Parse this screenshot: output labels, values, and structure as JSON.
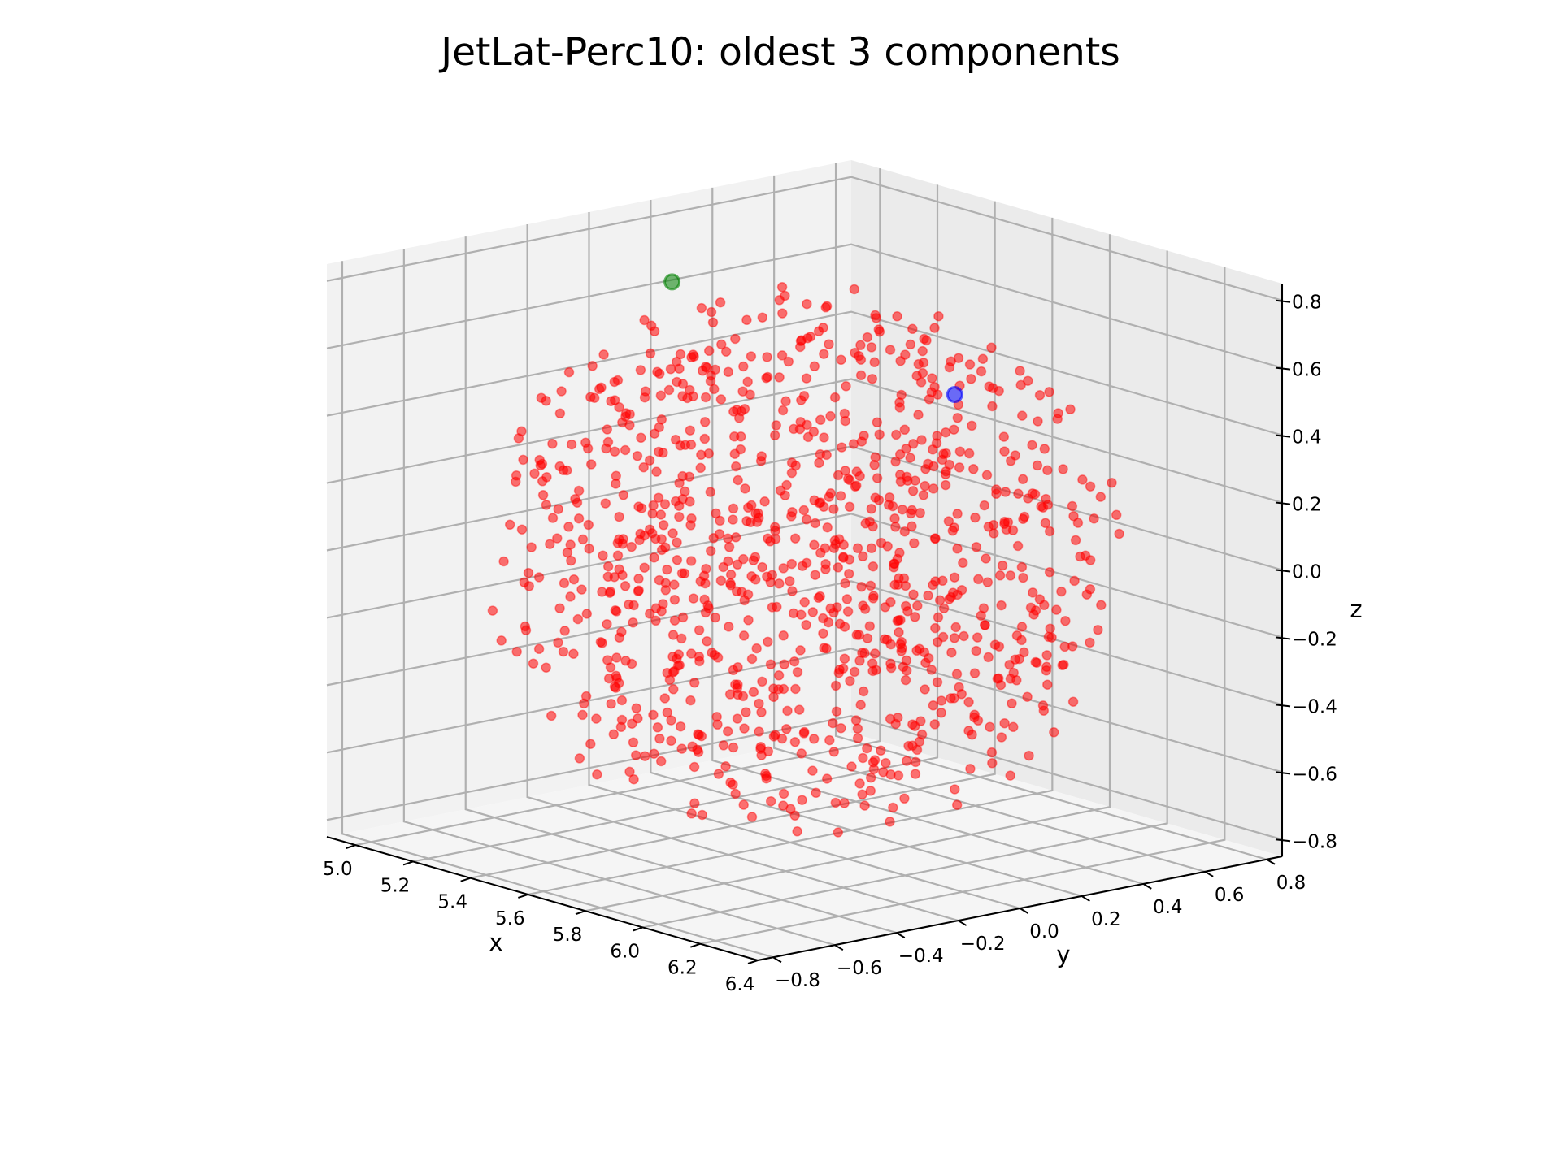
{
  "chart_data": {
    "type": "scatter",
    "title": "JetLat-Perc10: oldest 3 components",
    "xlabel": "x",
    "ylabel": "y",
    "zlabel": "z",
    "projection": "3d",
    "xlim": [
      4.9,
      6.4
    ],
    "ylim": [
      -0.85,
      0.85
    ],
    "zlim": [
      -0.85,
      0.85
    ],
    "x_ticks": [
      "5.0",
      "5.2",
      "5.4",
      "5.6",
      "5.8",
      "6.0",
      "6.2",
      "6.4"
    ],
    "y_ticks": [
      "−0.8",
      "−0.6",
      "−0.4",
      "−0.2",
      "0.0",
      "0.2",
      "0.4",
      "0.6",
      "0.8"
    ],
    "z_ticks": [
      "−0.8",
      "−0.6",
      "−0.4",
      "−0.2",
      "0.0",
      "0.2",
      "0.4",
      "0.6",
      "0.8"
    ],
    "grid": true,
    "series": [
      {
        "color": "#ff0000",
        "distribution": "dense spherical cloud",
        "approx_count": 1000,
        "center": [
          5.65,
          0.0,
          0.0
        ],
        "radius": [
          0.75,
          0.8,
          0.8
        ]
      },
      {
        "color": "#008000",
        "points": [
          [
            5.35,
            -0.15,
            0.78
          ]
        ]
      },
      {
        "color": "#0000ff",
        "points": [
          [
            5.4,
            0.72,
            0.3
          ]
        ]
      }
    ]
  }
}
